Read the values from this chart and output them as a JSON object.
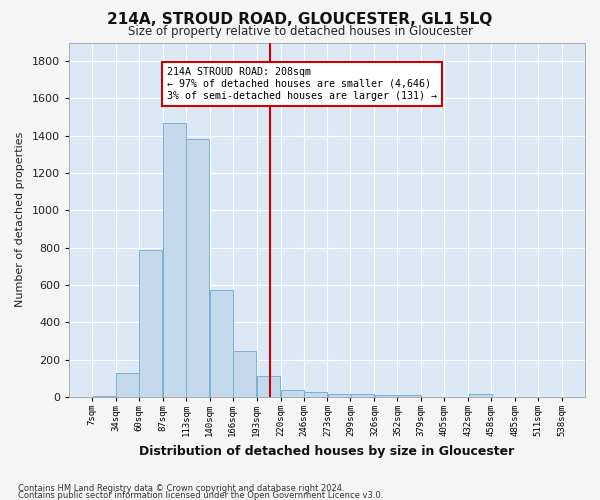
{
  "title": "214A, STROUD ROAD, GLOUCESTER, GL1 5LQ",
  "subtitle": "Size of property relative to detached houses in Gloucester",
  "xlabel": "Distribution of detached houses by size in Gloucester",
  "ylabel": "Number of detached properties",
  "bar_color": "#c5d9ed",
  "bar_edge_color": "#7aafd4",
  "axes_bg_color": "#dce8f5",
  "fig_bg_color": "#f5f5f5",
  "grid_color": "#ffffff",
  "property_line_x": 208,
  "property_line_color": "#cc0000",
  "annotation_text": "214A STROUD ROAD: 208sqm\n← 97% of detached houses are smaller (4,646)\n3% of semi-detached houses are larger (131) →",
  "annotation_box_color": "#cc0000",
  "bins": [
    7,
    34,
    60,
    87,
    113,
    140,
    166,
    193,
    220,
    246,
    273,
    299,
    326,
    352,
    379,
    405,
    432,
    458,
    485,
    511,
    538
  ],
  "values": [
    5,
    130,
    790,
    1470,
    1385,
    575,
    248,
    113,
    35,
    25,
    18,
    15,
    10,
    10,
    0,
    0,
    15,
    0,
    0,
    0
  ],
  "ylim": [
    0,
    1900
  ],
  "yticks": [
    0,
    200,
    400,
    600,
    800,
    1000,
    1200,
    1400,
    1600,
    1800
  ],
  "footnote1": "Contains HM Land Registry data © Crown copyright and database right 2024.",
  "footnote2": "Contains public sector information licensed under the Open Government Licence v3.0."
}
